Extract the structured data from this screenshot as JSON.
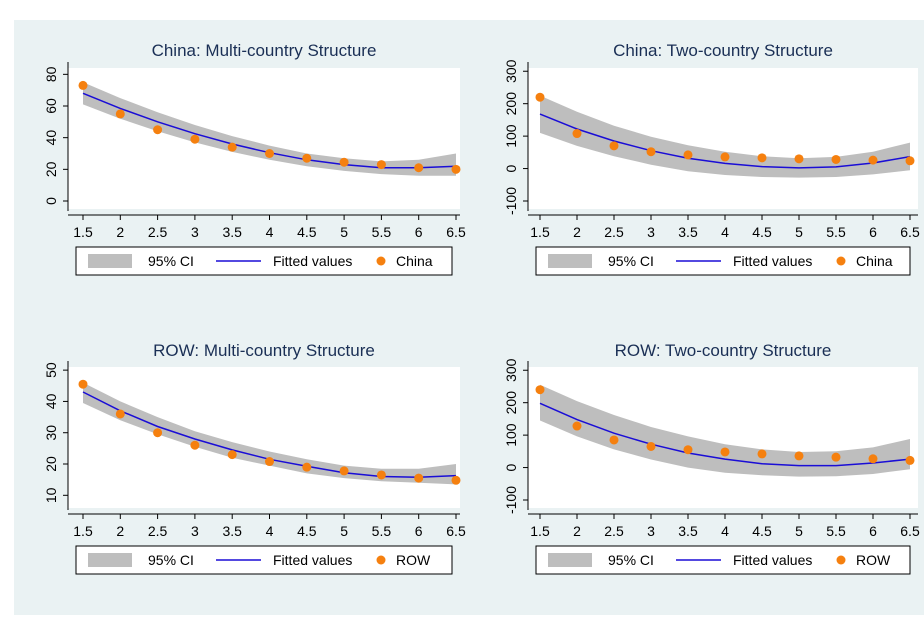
{
  "colors": {
    "background": "#eaf2f3",
    "ci_band": "#bebebe",
    "fitted_line": "#1a0dd6",
    "points": "#f5800f"
  },
  "legend_labels": {
    "ci": "95% CI",
    "fitted": "Fitted values"
  },
  "chart_data": [
    {
      "type": "line",
      "title": "China: Multi-country Structure",
      "x_ticks": [
        "1.5",
        "2",
        "2.5",
        "3",
        "3.5",
        "4",
        "4.5",
        "5",
        "5.5",
        "6",
        "6.5"
      ],
      "y_ticks": [
        "0",
        "20",
        "40",
        "60",
        "80"
      ],
      "xlim": [
        1.5,
        6.5
      ],
      "ylim": [
        0,
        84
      ],
      "x": [
        1.5,
        2,
        2.5,
        3,
        3.5,
        4,
        4.5,
        5,
        5.5,
        6,
        6.5
      ],
      "series": [
        {
          "name": "95% CI",
          "kind": "band",
          "lower": [
            61,
            52,
            44,
            37,
            31,
            26,
            22,
            19,
            17,
            16,
            16
          ],
          "upper": [
            75,
            65,
            56,
            48,
            41,
            35,
            30,
            27,
            25,
            26,
            30
          ]
        },
        {
          "name": "Fitted values",
          "kind": "line",
          "values": [
            68,
            58.5,
            50,
            42.5,
            36,
            30.5,
            26,
            23,
            21,
            21,
            22
          ]
        },
        {
          "name": "China",
          "kind": "scatter",
          "values": [
            73,
            55,
            45,
            39,
            34,
            30,
            27,
            24.5,
            23,
            21,
            20
          ]
        }
      ]
    },
    {
      "type": "line",
      "title": "China: Two-country Structure",
      "x_ticks": [
        "1.5",
        "2",
        "2.5",
        "3",
        "3.5",
        "4",
        "4.5",
        "5",
        "5.5",
        "6",
        "6.5"
      ],
      "y_ticks": [
        "-100",
        "0",
        "100",
        "200",
        "300"
      ],
      "xlim": [
        1.5,
        6.5
      ],
      "ylim": [
        -100,
        310
      ],
      "x": [
        1.5,
        2,
        2.5,
        3,
        3.5,
        4,
        4.5,
        5,
        5.5,
        6,
        6.5
      ],
      "series": [
        {
          "name": "95% CI",
          "kind": "band",
          "lower": [
            110,
            70,
            38,
            12,
            -8,
            -20,
            -26,
            -28,
            -26,
            -18,
            -5
          ],
          "upper": [
            225,
            175,
            132,
            98,
            72,
            52,
            38,
            32,
            36,
            52,
            80
          ]
        },
        {
          "name": "Fitted values",
          "kind": "line",
          "values": [
            168,
            122,
            85,
            55,
            32,
            16,
            6,
            2,
            5,
            17,
            37
          ]
        },
        {
          "name": "China",
          "kind": "scatter",
          "values": [
            220,
            108,
            70,
            52,
            42,
            36,
            33,
            30,
            28,
            26,
            24
          ]
        }
      ]
    },
    {
      "type": "line",
      "title": "ROW: Multi-country Structure",
      "x_ticks": [
        "1.5",
        "2",
        "2.5",
        "3",
        "3.5",
        "4",
        "4.5",
        "5",
        "5.5",
        "6",
        "6.5"
      ],
      "y_ticks": [
        "10",
        "20",
        "30",
        "40",
        "50"
      ],
      "xlim": [
        1.5,
        6.5
      ],
      "ylim": [
        8.5,
        51
      ],
      "x": [
        1.5,
        2,
        2.5,
        3,
        3.5,
        4,
        4.5,
        5,
        5.5,
        6,
        6.5
      ],
      "series": [
        {
          "name": "95% CI",
          "kind": "band",
          "lower": [
            39.5,
            34,
            29.5,
            25.5,
            22,
            19.5,
            17,
            15.5,
            14.5,
            14,
            13.5
          ],
          "upper": [
            46,
            40,
            35,
            30.5,
            27,
            24,
            21.5,
            19.5,
            18.5,
            18.5,
            20
          ]
        },
        {
          "name": "Fitted values",
          "kind": "line",
          "values": [
            43,
            37,
            32,
            28,
            24.5,
            21.5,
            19.3,
            17.2,
            16,
            15.8,
            16.3
          ]
        },
        {
          "name": "ROW",
          "kind": "scatter",
          "values": [
            45.5,
            36,
            30,
            26,
            23,
            20.8,
            19,
            17.8,
            16.5,
            15.5,
            14.8
          ]
        }
      ]
    },
    {
      "type": "line",
      "title": "ROW: Two-country Structure",
      "x_ticks": [
        "1.5",
        "2",
        "2.5",
        "3",
        "3.5",
        "4",
        "4.5",
        "5",
        "5.5",
        "6",
        "6.5"
      ],
      "y_ticks": [
        "-100",
        "0",
        "100",
        "200",
        "300"
      ],
      "xlim": [
        1.5,
        6.5
      ],
      "ylim": [
        -100,
        310
      ],
      "x": [
        1.5,
        2,
        2.5,
        3,
        3.5,
        4,
        4.5,
        5,
        5.5,
        6,
        6.5
      ],
      "series": [
        {
          "name": "95% CI",
          "kind": "band",
          "lower": [
            145,
            96,
            56,
            25,
            0,
            -16,
            -24,
            -28,
            -27,
            -20,
            -5
          ],
          "upper": [
            255,
            205,
            162,
            125,
            96,
            72,
            56,
            48,
            50,
            62,
            88
          ]
        },
        {
          "name": "Fitted values",
          "kind": "line",
          "values": [
            198,
            148,
            106,
            72,
            45,
            26,
            12,
            6,
            6,
            14,
            26
          ]
        },
        {
          "name": "ROW",
          "kind": "scatter",
          "values": [
            240,
            128,
            85,
            65,
            55,
            48,
            42,
            36,
            32,
            27,
            22
          ]
        }
      ]
    }
  ]
}
